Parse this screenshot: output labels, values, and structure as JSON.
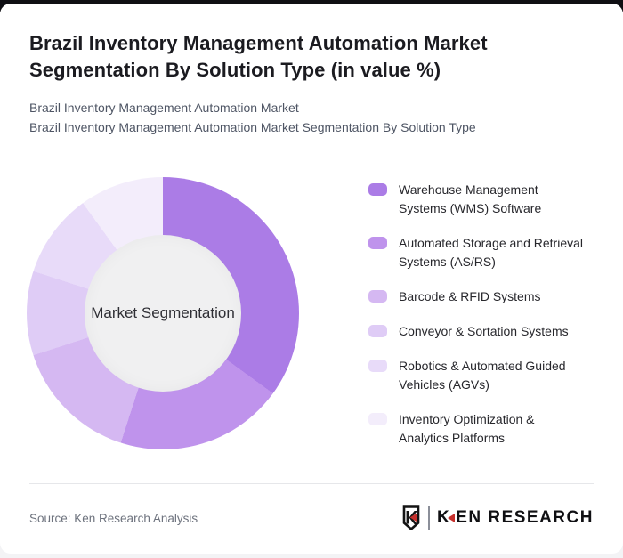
{
  "header": {
    "title": "Brazil Inventory Management Automation Market Segmentation By Solution Type (in value %)",
    "subtitle_line1": "Brazil Inventory Management Automation Market",
    "subtitle_line2": "Brazil Inventory Management Automation Market Segmentation By Solution Type"
  },
  "chart_data": {
    "type": "pie",
    "variant": "donut",
    "title": "Brazil Inventory Management Automation Market Segmentation By Solution Type (in value %)",
    "center_label": "Market Segmentation",
    "categories": [
      "Warehouse Management Systems (WMS) Software",
      "Automated Storage and Retrieval Systems (AS/RS)",
      "Barcode & RFID Systems",
      "Conveyor & Sortation Systems",
      "Robotics & Automated Guided Vehicles (AGVs)",
      "Inventory Optimization & Analytics Platforms"
    ],
    "values": [
      35,
      20,
      15,
      10,
      10,
      10
    ],
    "unit": "value %",
    "colors": [
      "#ab7ce6",
      "#bf93ec",
      "#d5b8f2",
      "#dfccf6",
      "#e8dbf9",
      "#f3edfb"
    ],
    "start_angle_deg": 0,
    "direction": "clockwise",
    "inner_hole_color": "#f0f0f1",
    "legend_position": "right"
  },
  "footer": {
    "source": "Source: Ken Research Analysis",
    "logo": {
      "brand_first_letter": "K",
      "brand_rest": "EN RESEARCH",
      "accent_color": "#c6302c"
    }
  }
}
